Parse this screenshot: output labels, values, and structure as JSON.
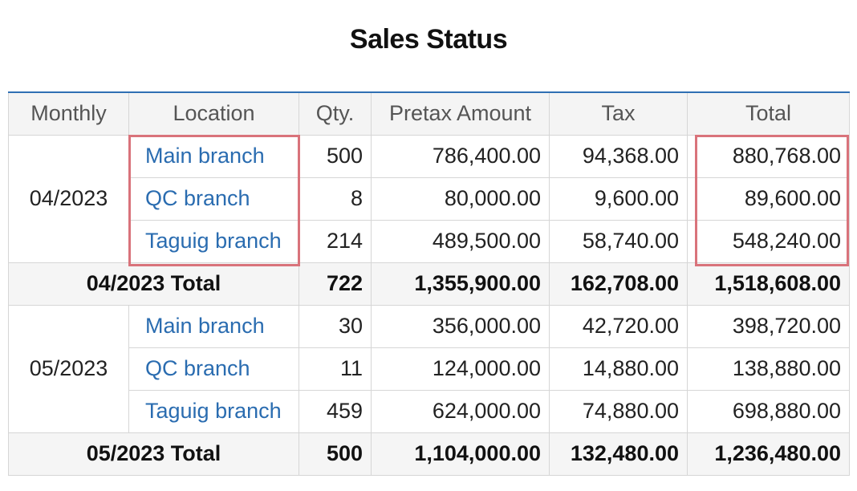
{
  "title": "Sales Status",
  "colors": {
    "accent_border": "#2f6fb3",
    "link": "#2a6cb0",
    "highlight": "#d9737b",
    "header_bg": "#f4f4f4",
    "subtotal_bg": "#f5f5f5"
  },
  "table": {
    "headers": {
      "monthly": "Monthly",
      "location": "Location",
      "qty": "Qty.",
      "pretax": "Pretax Amount",
      "tax": "Tax",
      "total": "Total"
    },
    "groups": [
      {
        "month": "04/2023",
        "rows": [
          {
            "location": "Main branch",
            "qty": "500",
            "pretax": "786,400.00",
            "tax": "94,368.00",
            "total": "880,768.00"
          },
          {
            "location": "QC branch",
            "qty": "8",
            "pretax": "80,000.00",
            "tax": "9,600.00",
            "total": "89,600.00"
          },
          {
            "location": "Taguig branch",
            "qty": "214",
            "pretax": "489,500.00",
            "tax": "58,740.00",
            "total": "548,240.00"
          }
        ],
        "subtotal": {
          "label": "04/2023 Total",
          "qty": "722",
          "pretax": "1,355,900.00",
          "tax": "162,708.00",
          "total": "1,518,608.00"
        }
      },
      {
        "month": "05/2023",
        "rows": [
          {
            "location": "Main branch",
            "qty": "30",
            "pretax": "356,000.00",
            "tax": "42,720.00",
            "total": "398,720.00"
          },
          {
            "location": "QC branch",
            "qty": "11",
            "pretax": "124,000.00",
            "tax": "14,880.00",
            "total": "138,880.00"
          },
          {
            "location": "Taguig branch",
            "qty": "459",
            "pretax": "624,000.00",
            "tax": "74,880.00",
            "total": "698,880.00"
          }
        ],
        "subtotal": {
          "label": "05/2023 Total",
          "qty": "500",
          "pretax": "1,104,000.00",
          "tax": "132,480.00",
          "total": "1,236,480.00"
        }
      }
    ]
  }
}
